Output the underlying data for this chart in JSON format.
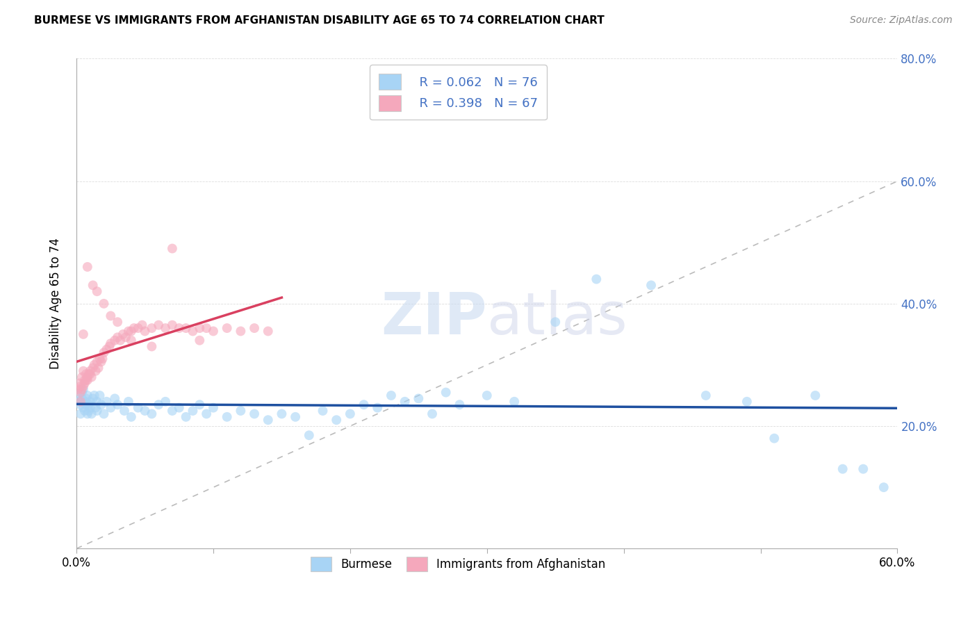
{
  "title": "BURMESE VS IMMIGRANTS FROM AFGHANISTAN DISABILITY AGE 65 TO 74 CORRELATION CHART",
  "source": "Source: ZipAtlas.com",
  "ylabel": "Disability Age 65 to 74",
  "legend_bottom": [
    "Burmese",
    "Immigrants from Afghanistan"
  ],
  "xlim": [
    0.0,
    0.6
  ],
  "ylim": [
    0.0,
    0.8
  ],
  "xticks": [
    0.0,
    0.1,
    0.2,
    0.3,
    0.4,
    0.5,
    0.6
  ],
  "yticks": [
    0.0,
    0.2,
    0.4,
    0.6,
    0.8
  ],
  "burmese_color": "#a8d4f5",
  "afghan_color": "#f5a8bc",
  "burmese_line_color": "#1e50a0",
  "afghan_line_color": "#d94060",
  "ref_line_color": "#bbbbbb",
  "legend_R_burmese": "R = 0.062",
  "legend_N_burmese": "N = 76",
  "legend_R_afghan": "R = 0.398",
  "legend_N_afghan": "N = 67",
  "watermark_zip": "ZIP",
  "watermark_atlas": "atlas",
  "marker_size": 100,
  "alpha": 0.6,
  "burmese_x": [
    0.001,
    0.002,
    0.003,
    0.003,
    0.004,
    0.004,
    0.005,
    0.005,
    0.006,
    0.006,
    0.007,
    0.007,
    0.008,
    0.008,
    0.009,
    0.009,
    0.01,
    0.01,
    0.011,
    0.012,
    0.013,
    0.014,
    0.015,
    0.015,
    0.017,
    0.018,
    0.02,
    0.022,
    0.025,
    0.028,
    0.03,
    0.035,
    0.038,
    0.04,
    0.045,
    0.05,
    0.055,
    0.06,
    0.065,
    0.07,
    0.075,
    0.08,
    0.085,
    0.09,
    0.095,
    0.1,
    0.11,
    0.12,
    0.13,
    0.14,
    0.15,
    0.16,
    0.17,
    0.18,
    0.19,
    0.2,
    0.21,
    0.22,
    0.23,
    0.24,
    0.25,
    0.26,
    0.27,
    0.28,
    0.3,
    0.32,
    0.35,
    0.38,
    0.42,
    0.46,
    0.49,
    0.51,
    0.54,
    0.56,
    0.575,
    0.59
  ],
  "burmese_y": [
    0.25,
    0.24,
    0.235,
    0.22,
    0.245,
    0.255,
    0.23,
    0.26,
    0.24,
    0.225,
    0.235,
    0.245,
    0.25,
    0.22,
    0.235,
    0.225,
    0.24,
    0.23,
    0.22,
    0.245,
    0.25,
    0.23,
    0.24,
    0.225,
    0.25,
    0.235,
    0.22,
    0.24,
    0.23,
    0.245,
    0.235,
    0.225,
    0.24,
    0.215,
    0.23,
    0.225,
    0.22,
    0.235,
    0.24,
    0.225,
    0.23,
    0.215,
    0.225,
    0.235,
    0.22,
    0.23,
    0.215,
    0.225,
    0.22,
    0.21,
    0.22,
    0.215,
    0.185,
    0.225,
    0.21,
    0.22,
    0.235,
    0.23,
    0.25,
    0.24,
    0.245,
    0.22,
    0.255,
    0.235,
    0.25,
    0.24,
    0.37,
    0.44,
    0.43,
    0.25,
    0.24,
    0.18,
    0.25,
    0.13,
    0.13,
    0.1
  ],
  "afghan_x": [
    0.001,
    0.002,
    0.003,
    0.003,
    0.004,
    0.004,
    0.005,
    0.005,
    0.006,
    0.006,
    0.007,
    0.007,
    0.008,
    0.008,
    0.009,
    0.01,
    0.01,
    0.011,
    0.012,
    0.013,
    0.014,
    0.015,
    0.016,
    0.017,
    0.018,
    0.019,
    0.02,
    0.022,
    0.024,
    0.025,
    0.028,
    0.03,
    0.032,
    0.034,
    0.036,
    0.038,
    0.04,
    0.042,
    0.045,
    0.048,
    0.05,
    0.055,
    0.06,
    0.065,
    0.07,
    0.075,
    0.08,
    0.085,
    0.09,
    0.095,
    0.1,
    0.11,
    0.12,
    0.13,
    0.14,
    0.003,
    0.005,
    0.008,
    0.012,
    0.015,
    0.02,
    0.025,
    0.03,
    0.04,
    0.055,
    0.07,
    0.09
  ],
  "afghan_y": [
    0.26,
    0.27,
    0.255,
    0.265,
    0.26,
    0.28,
    0.29,
    0.265,
    0.275,
    0.27,
    0.285,
    0.275,
    0.28,
    0.275,
    0.285,
    0.285,
    0.29,
    0.28,
    0.295,
    0.3,
    0.29,
    0.305,
    0.295,
    0.31,
    0.305,
    0.31,
    0.32,
    0.325,
    0.33,
    0.335,
    0.34,
    0.345,
    0.34,
    0.35,
    0.345,
    0.355,
    0.355,
    0.36,
    0.36,
    0.365,
    0.355,
    0.36,
    0.365,
    0.36,
    0.365,
    0.36,
    0.36,
    0.355,
    0.36,
    0.36,
    0.355,
    0.36,
    0.355,
    0.36,
    0.355,
    0.24,
    0.35,
    0.46,
    0.43,
    0.42,
    0.4,
    0.38,
    0.37,
    0.34,
    0.33,
    0.49,
    0.34
  ]
}
